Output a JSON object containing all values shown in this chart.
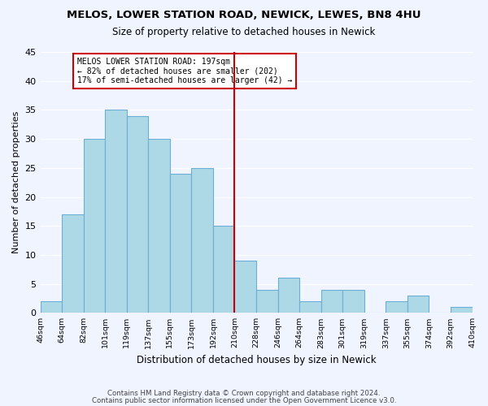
{
  "title": "MELOS, LOWER STATION ROAD, NEWICK, LEWES, BN8 4HU",
  "subtitle": "Size of property relative to detached houses in Newick",
  "xlabel": "Distribution of detached houses by size in Newick",
  "ylabel": "Number of detached properties",
  "bin_labels": [
    "46sqm",
    "64sqm",
    "82sqm",
    "101sqm",
    "119sqm",
    "137sqm",
    "155sqm",
    "173sqm",
    "192sqm",
    "210sqm",
    "228sqm",
    "246sqm",
    "264sqm",
    "283sqm",
    "301sqm",
    "319sqm",
    "337sqm",
    "355sqm",
    "374sqm",
    "392sqm",
    "410sqm"
  ],
  "bar_heights": [
    2,
    17,
    30,
    35,
    34,
    30,
    24,
    25,
    15,
    9,
    4,
    6,
    2,
    4,
    4,
    0,
    2,
    3,
    0,
    1
  ],
  "bar_color": "#add8e6",
  "bar_edge_color": "#6baed6",
  "vline_x": 8.5,
  "vline_color": "#cc0000",
  "annotation_text": "MELOS LOWER STATION ROAD: 197sqm\n← 82% of detached houses are smaller (202)\n17% of semi-detached houses are larger (42) →",
  "annotation_box_edgecolor": "#cc0000",
  "ylim": [
    0,
    45
  ],
  "yticks": [
    0,
    5,
    10,
    15,
    20,
    25,
    30,
    35,
    40,
    45
  ],
  "footer_line1": "Contains HM Land Registry data © Crown copyright and database right 2024.",
  "footer_line2": "Contains public sector information licensed under the Open Government Licence v3.0.",
  "bg_color": "#f0f4ff"
}
